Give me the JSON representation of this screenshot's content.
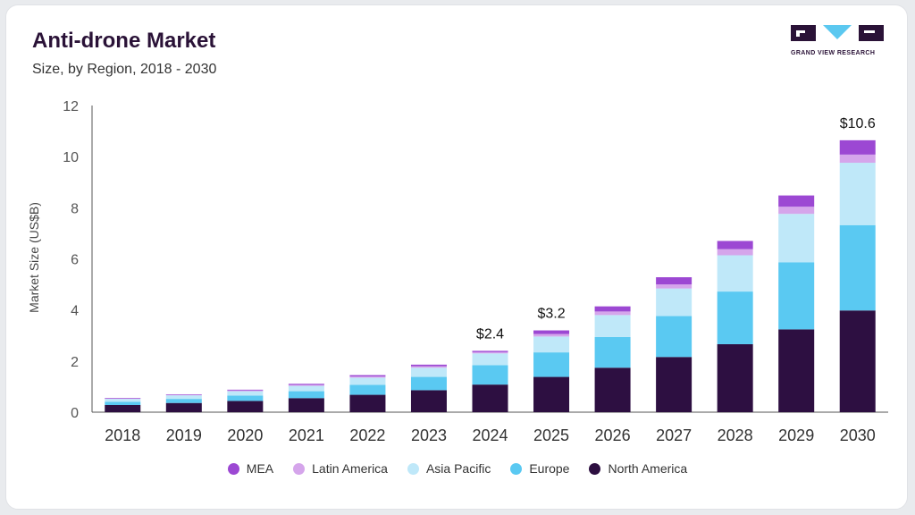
{
  "header": {
    "title": "Anti-drone Market",
    "subtitle": "Size, by Region, 2018 - 2030"
  },
  "logo": {
    "text": "GRAND VIEW RESEARCH",
    "color": "#2a1237",
    "accent": "#5bc8f0"
  },
  "chart_data": {
    "type": "bar",
    "stacked": true,
    "title": "Anti-drone Market",
    "subtitle": "Size, by Region, 2018 - 2030",
    "xlabel": "",
    "ylabel": "Market Size (US$B)",
    "ylim": [
      0,
      12
    ],
    "yticks": [
      "0",
      "2",
      "4",
      "6",
      "8",
      "10",
      "12"
    ],
    "grid": false,
    "legend_position": "bottom",
    "categories": [
      "2018",
      "2019",
      "2020",
      "2021",
      "2022",
      "2023",
      "2024",
      "2025",
      "2026",
      "2027",
      "2028",
      "2029",
      "2030"
    ],
    "series": [
      {
        "name": "North America",
        "color": "#2d0f41",
        "values": [
          0.28,
          0.36,
          0.44,
          0.55,
          0.68,
          0.86,
          1.08,
          1.38,
          1.74,
          2.16,
          2.66,
          3.24,
          3.98
        ]
      },
      {
        "name": "Europe",
        "color": "#5ac9f2",
        "values": [
          0.13,
          0.16,
          0.21,
          0.27,
          0.39,
          0.52,
          0.76,
          0.96,
          1.2,
          1.6,
          2.06,
          2.62,
          3.34
        ]
      },
      {
        "name": "Asia Pacific",
        "color": "#bfe8f9",
        "values": [
          0.11,
          0.14,
          0.17,
          0.21,
          0.28,
          0.36,
          0.46,
          0.62,
          0.86,
          1.08,
          1.42,
          1.9,
          2.44
        ]
      },
      {
        "name": "Latin America",
        "color": "#d5a5eb",
        "values": [
          0.02,
          0.02,
          0.03,
          0.04,
          0.05,
          0.06,
          0.05,
          0.1,
          0.14,
          0.16,
          0.24,
          0.28,
          0.32
        ]
      },
      {
        "name": "MEA",
        "color": "#9c48d3",
        "values": [
          0.02,
          0.02,
          0.03,
          0.04,
          0.05,
          0.06,
          0.05,
          0.14,
          0.2,
          0.28,
          0.32,
          0.44,
          0.56
        ]
      }
    ],
    "legend_order": [
      "MEA",
      "Latin America",
      "Asia Pacific",
      "Europe",
      "North America"
    ],
    "annotations": [
      {
        "category": "2024",
        "text": "$2.4"
      },
      {
        "category": "2025",
        "text": "$3.2"
      },
      {
        "category": "2030",
        "text": "$10.6"
      }
    ]
  }
}
